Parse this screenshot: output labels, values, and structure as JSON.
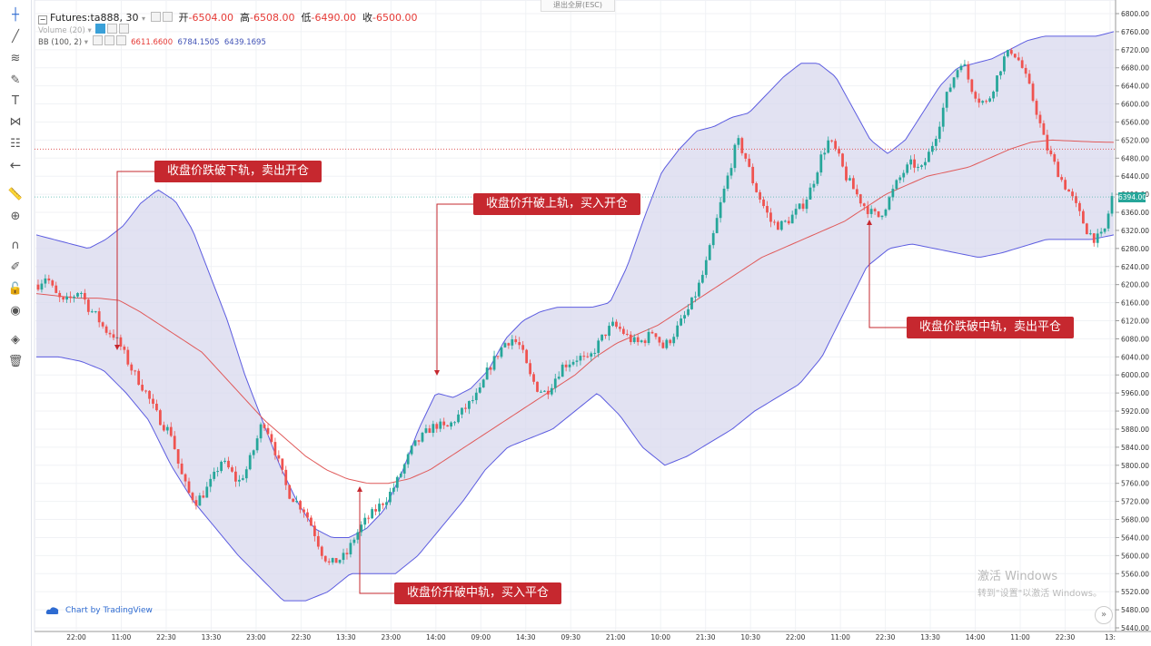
{
  "legend": {
    "symbol": "Futures:ta888, 30",
    "ohlc": [
      {
        "label": "开",
        "value": "6504.00"
      },
      {
        "label": "高",
        "value": "6508.00"
      },
      {
        "label": "低",
        "value": "6490.00"
      },
      {
        "label": "收",
        "value": "6500.00"
      }
    ],
    "volume": "Volume (20)",
    "bb_label": "BB (100, 2)",
    "bb_values": [
      "6611.6600",
      "6784.1505",
      "6439.1695"
    ]
  },
  "exit_fullscreen": "退出全屏(ESC)",
  "annotations": [
    {
      "text": "收盘价跌破下轨，卖出开仓"
    },
    {
      "text": "收盘价升破上轨，买入开仓"
    },
    {
      "text": "收盘价跌破中轨，卖出平仓"
    },
    {
      "text": "收盘价升破中轨，买入平仓"
    }
  ],
  "watermark": {
    "line1": "激活 Windows",
    "line2": "转到\"设置\"以激活 Windows。"
  },
  "branding": "Chart by TradingView",
  "current_price": "6394.00",
  "colors": {
    "up": "#26a69a",
    "down": "#ef5350",
    "band_fill": "#d8d8ee",
    "band_line": "#5c5ce0",
    "basis_line": "#e05a5a",
    "annotation_bg": "#c6282f",
    "axis_text": "#333333"
  },
  "chart_data": {
    "type": "candlestick",
    "y_axis_ticks": [
      "6800.00",
      "6760.00",
      "6720.00",
      "6680.00",
      "6640.00",
      "6600.00",
      "6560.00",
      "6520.00",
      "6480.00",
      "6440.00",
      "6400.00",
      "6360.00",
      "6320.00",
      "6280.00",
      "6240.00",
      "6200.00",
      "6160.00",
      "6120.00",
      "6080.00",
      "6040.00",
      "6000.00",
      "5960.00",
      "5920.00",
      "5880.00",
      "5840.00",
      "5800.00",
      "5760.00",
      "5720.00",
      "5680.00",
      "5640.00",
      "5600.00",
      "5560.00",
      "5520.00",
      "5480.00",
      "5440.00"
    ],
    "x_axis_ticks": [
      "22:00",
      "11:00",
      "22:30",
      "13:30",
      "23:00",
      "22:30",
      "13:30",
      "23:00",
      "14:00",
      "09:00",
      "14:30",
      "09:30",
      "21:00",
      "10:00",
      "21:30",
      "10:30",
      "22:00",
      "11:00",
      "22:30",
      "13:30",
      "14:00",
      "11:00",
      "22:30",
      "13:"
    ],
    "ylim": [
      5440,
      6800
    ],
    "close_path": [
      6200,
      6220,
      6180,
      6160,
      6170,
      6190,
      6150,
      6130,
      6100,
      6090,
      6060,
      6020,
      5990,
      5960,
      5920,
      5890,
      5870,
      5790,
      5740,
      5720,
      5740,
      5770,
      5810,
      5790,
      5760,
      5790,
      5840,
      5900,
      5860,
      5800,
      5740,
      5720,
      5700,
      5660,
      5610,
      5580,
      5590,
      5600,
      5640,
      5670,
      5690,
      5710,
      5730,
      5760,
      5800,
      5840,
      5860,
      5880,
      5890,
      5880,
      5900,
      5920,
      5940,
      5960,
      6010,
      6040,
      6070,
      6080,
      6060,
      6000,
      5970,
      5960,
      5990,
      6020,
      6030,
      6040,
      6030,
      6060,
      6090,
      6110,
      6100,
      6080,
      6070,
      6080,
      6100,
      6060,
      6080,
      6110,
      6140,
      6180,
      6230,
      6300,
      6380,
      6450,
      6520,
      6480,
      6420,
      6380,
      6340,
      6330,
      6340,
      6360,
      6380,
      6420,
      6480,
      6520,
      6490,
      6440,
      6410,
      6380,
      6360,
      6350,
      6380,
      6420,
      6450,
      6470,
      6450,
      6490,
      6540,
      6610,
      6660,
      6700,
      6640,
      6610,
      6600,
      6650,
      6700,
      6720,
      6690,
      6640,
      6580,
      6510,
      6470,
      6430,
      6400,
      6360,
      6320,
      6300,
      6310,
      6394
    ],
    "upper_band_path": [
      6310,
      6300,
      6290,
      6280,
      6300,
      6330,
      6380,
      6410,
      6385,
      6320,
      6220,
      6120,
      6000,
      5900,
      5800,
      5720,
      5660,
      5640,
      5640,
      5660,
      5700,
      5780,
      5880,
      5960,
      5950,
      5970,
      6010,
      6080,
      6120,
      6140,
      6150,
      6150,
      6150,
      6160,
      6240,
      6350,
      6450,
      6500,
      6540,
      6550,
      6570,
      6580,
      6620,
      6660,
      6690,
      6690,
      6660,
      6590,
      6520,
      6490,
      6520,
      6580,
      6640,
      6680,
      6690,
      6700,
      6720,
      6740,
      6750,
      6750,
      6750,
      6750,
      6760
    ],
    "lower_band_path": [
      6040,
      6040,
      6030,
      6010,
      5960,
      5900,
      5800,
      5720,
      5660,
      5600,
      5550,
      5500,
      5500,
      5520,
      5560,
      5560,
      5560,
      5600,
      5660,
      5720,
      5790,
      5840,
      5860,
      5880,
      5920,
      5960,
      5910,
      5840,
      5800,
      5820,
      5850,
      5880,
      5920,
      5950,
      5980,
      6040,
      6140,
      6240,
      6280,
      6290,
      6280,
      6270,
      6260,
      6270,
      6285,
      6300,
      6300,
      6300,
      6310
    ],
    "basis_path": [
      6180,
      6175,
      6170,
      6170,
      6165,
      6140,
      6110,
      6080,
      6050,
      6000,
      5950,
      5900,
      5860,
      5820,
      5790,
      5770,
      5760,
      5760,
      5770,
      5790,
      5820,
      5850,
      5880,
      5910,
      5940,
      5970,
      6000,
      6040,
      6070,
      6090,
      6110,
      6140,
      6170,
      6200,
      6230,
      6260,
      6280,
      6300,
      6320,
      6340,
      6370,
      6400,
      6420,
      6440,
      6450,
      6460,
      6480,
      6500,
      6515,
      6520,
      6518,
      6516,
      6515
    ],
    "hline": 6500
  }
}
